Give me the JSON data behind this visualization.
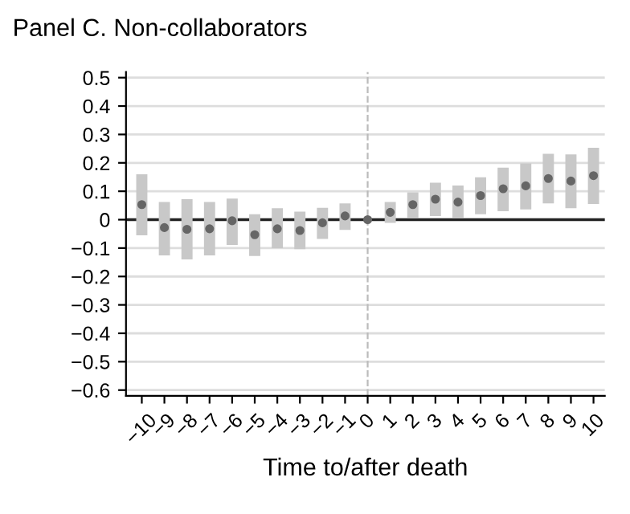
{
  "chart_data": {
    "type": "scatter",
    "title": "Panel C. Non-collaborators",
    "xlabel": "Time to/after death",
    "x": [
      -10,
      -9,
      -8,
      -7,
      -6,
      -5,
      -4,
      -3,
      -2,
      -1,
      0,
      1,
      2,
      3,
      4,
      5,
      6,
      7,
      8,
      9,
      10
    ],
    "series": [
      {
        "color": "#666666",
        "values": [
          0.053,
          -0.028,
          -0.034,
          -0.032,
          -0.004,
          -0.053,
          -0.032,
          -0.038,
          -0.011,
          0.013,
          0.0,
          0.026,
          0.053,
          0.072,
          0.062,
          0.085,
          0.109,
          0.119,
          0.145,
          0.136,
          0.155
        ],
        "errors": [
          [
            -0.055,
            0.16
          ],
          [
            -0.126,
            0.062
          ],
          [
            -0.14,
            0.072
          ],
          [
            -0.126,
            0.062
          ],
          [
            -0.089,
            0.074
          ],
          [
            -0.128,
            0.019
          ],
          [
            -0.1,
            0.04
          ],
          [
            -0.104,
            0.028
          ],
          [
            -0.068,
            0.042
          ],
          [
            -0.036,
            0.057
          ],
          null,
          [
            -0.011,
            0.062
          ],
          [
            0.006,
            0.096
          ],
          [
            0.013,
            0.13
          ],
          [
            0.004,
            0.12
          ],
          [
            0.019,
            0.149
          ],
          [
            0.03,
            0.183
          ],
          [
            0.036,
            0.198
          ],
          [
            0.057,
            0.232
          ],
          [
            0.04,
            0.23
          ],
          [
            0.055,
            0.253
          ]
        ]
      }
    ],
    "xlim": [
      -10.7,
      10.5
    ],
    "ylim": [
      -0.62,
      0.52
    ],
    "xticks": [
      {
        "value": -10,
        "label": "−10"
      },
      {
        "value": -9,
        "label": "−9"
      },
      {
        "value": -8,
        "label": "−8"
      },
      {
        "value": -7,
        "label": "−7"
      },
      {
        "value": -6,
        "label": "−6"
      },
      {
        "value": -5,
        "label": "−5"
      },
      {
        "value": -4,
        "label": "−4"
      },
      {
        "value": -3,
        "label": "−3"
      },
      {
        "value": -2,
        "label": "−2"
      },
      {
        "value": -1,
        "label": "−1"
      },
      0,
      1,
      2,
      3,
      4,
      5,
      6,
      7,
      8,
      9,
      10
    ],
    "yticks": [
      0.5,
      0.4,
      0.3,
      0.2,
      0.1,
      0,
      {
        "value": -0.1,
        "label": "−0.1"
      },
      {
        "value": -0.2,
        "label": "−0.2"
      },
      {
        "value": -0.3,
        "label": "−0.3"
      },
      {
        "value": -0.4,
        "label": "−0.4"
      },
      {
        "value": -0.5,
        "label": "−0.5"
      },
      {
        "value": -0.6,
        "label": "−0.6"
      }
    ],
    "ref_lines": [
      {
        "axis": "y",
        "value": 0,
        "color": "#222222",
        "line_style": "solid"
      },
      {
        "axis": "x",
        "value": 0,
        "color": "#bbbbbb",
        "line_style": "dashed"
      }
    ],
    "grid": "y",
    "marker": "circle"
  }
}
